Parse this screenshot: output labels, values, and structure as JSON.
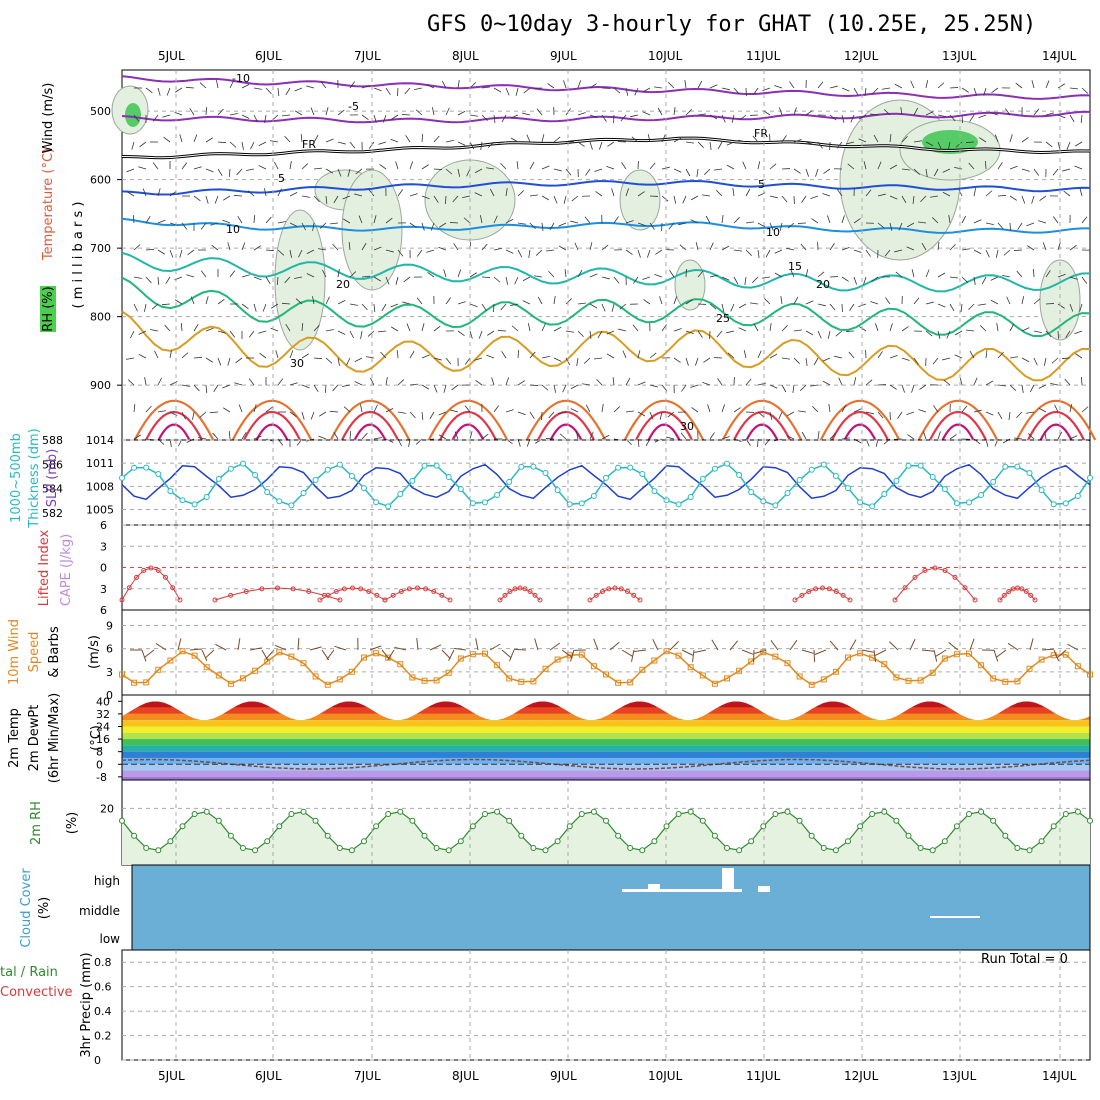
{
  "title": "GFS 0~10day 3-hourly for GHAT (10.25E, 25.25N)",
  "date_labels": [
    "5JUL",
    "6JUL",
    "7JUL",
    "8JUL",
    "9JUL",
    "10JUL",
    "11JUL",
    "12JUL",
    "13JUL",
    "14JUL"
  ],
  "panel_labels": {
    "upper_rh": "RH (%)",
    "upper_temp": "Temperature (°C)",
    "upper_wind": "Wind (m/s)",
    "upper_unit": "( m i l l i b a r s )",
    "thick1": "1000~500mb",
    "thick2": "Thickness (dm)",
    "slp": "SLP (mb)",
    "li": "Lifted Index",
    "cape": "CAPE (J/kg)",
    "wind1": "10m Wind",
    "wind2": "Speed",
    "wind3": "& Barbs",
    "wind_unit": "(m/s)",
    "t1": "2m Temp",
    "t2": "2m DewPt",
    "t3": "(6hr Min/Max)",
    "t_unit": "(°C)",
    "rh": "2m RH",
    "rh_unit": "(%)",
    "cloud": "Cloud Cover",
    "cloud_unit": "(%)",
    "precip1": "tal / Rain",
    "precip2": "Convective",
    "precip3": "3hr Precip (mm)"
  },
  "cloud_levels": [
    "high",
    "middle",
    "low"
  ],
  "run_total": "Run Total = 0",
  "contour_labels": {
    "temp": [
      "-10",
      "-5",
      "5",
      "5",
      "10",
      "10",
      "15",
      "20",
      "20",
      "25",
      "30",
      "30"
    ],
    "freeze": [
      "FR",
      "FR"
    ]
  },
  "colors": {
    "cloud_bg": "#6baed6",
    "slp_line": "#1f3fd0",
    "thick_line": "#2ab9c0",
    "li_line": "#d83a3a",
    "wind_line": "#e08a1e",
    "rh_line": "#2e8b2e",
    "rh_fill": "#e6f2e0"
  },
  "chart_data": [
    {
      "type": "line",
      "name": "upper-air",
      "yaxis_label": "( m i l l i b a r s )",
      "ylim": [
        440,
        980
      ],
      "yticks": [
        500,
        600,
        700,
        800,
        900
      ],
      "isotherms": [
        {
          "label": "-10",
          "p": [
            452,
            458,
            462,
            466,
            470,
            474,
            478,
            480
          ]
        },
        {
          "label": "-5",
          "p": [
            510,
            512,
            514,
            512,
            510,
            508,
            506,
            504
          ]
        },
        {
          "label": "FR",
          "p": [
            568,
            562,
            556,
            546,
            540,
            548,
            556,
            560
          ]
        },
        {
          "label": "5",
          "p": [
            620,
            616,
            610,
            606,
            604,
            610,
            612,
            615
          ]
        },
        {
          "label": "10",
          "p": [
            660,
            670,
            672,
            668,
            664,
            672,
            675,
            674
          ]
        },
        {
          "label": "15",
          "p": [
            718,
            730,
            735,
            740,
            742,
            750,
            752,
            748
          ]
        },
        {
          "label": "20",
          "p": [
            760,
            790,
            800,
            795,
            790,
            800,
            810,
            812
          ]
        },
        {
          "label": "25",
          "p": [
            815,
            850,
            860,
            850,
            840,
            860,
            870,
            870
          ]
        }
      ]
    },
    {
      "type": "line",
      "name": "thickness-slp",
      "series": [
        {
          "name": "1000~500mb Thickness (dm)",
          "ylim": [
            581,
            588
          ],
          "yticks": [
            582,
            584,
            586,
            588
          ]
        },
        {
          "name": "SLP (mb)",
          "ylim": [
            1003,
            1014
          ],
          "yticks": [
            1005,
            1008,
            1011,
            1014
          ]
        }
      ]
    },
    {
      "type": "line",
      "name": "lifted-index",
      "ylim": [
        -6,
        6
      ],
      "yticks": [
        -6,
        -3,
        0,
        3,
        6
      ],
      "ytick_labels": [
        "6",
        "3",
        "0",
        "3",
        "6"
      ]
    },
    {
      "type": "line",
      "name": "10m-wind",
      "ylim": [
        0,
        11
      ],
      "yticks": [
        0,
        3,
        6,
        9
      ]
    },
    {
      "type": "area",
      "name": "2m-temp",
      "ylim": [
        -10,
        44
      ],
      "yticks": [
        -8,
        0,
        8,
        16,
        24,
        32,
        40
      ],
      "ytick_labels": [
        "-8",
        "0",
        "8",
        "16",
        "24",
        "32",
        "40"
      ]
    },
    {
      "type": "line",
      "name": "2m-rh",
      "ylim": [
        0,
        30
      ],
      "yticks": [
        20
      ]
    },
    {
      "type": "bar",
      "name": "cloud-cover",
      "categories": [
        "high",
        "middle",
        "low"
      ]
    },
    {
      "type": "bar",
      "name": "precip",
      "ylim": [
        0,
        0.9
      ],
      "yticks": [
        0,
        0.2,
        0.4,
        0.6,
        0.8
      ],
      "ytick_labels": [
        "0",
        "0.2",
        "0.4",
        "0.6",
        "0.8"
      ]
    }
  ]
}
